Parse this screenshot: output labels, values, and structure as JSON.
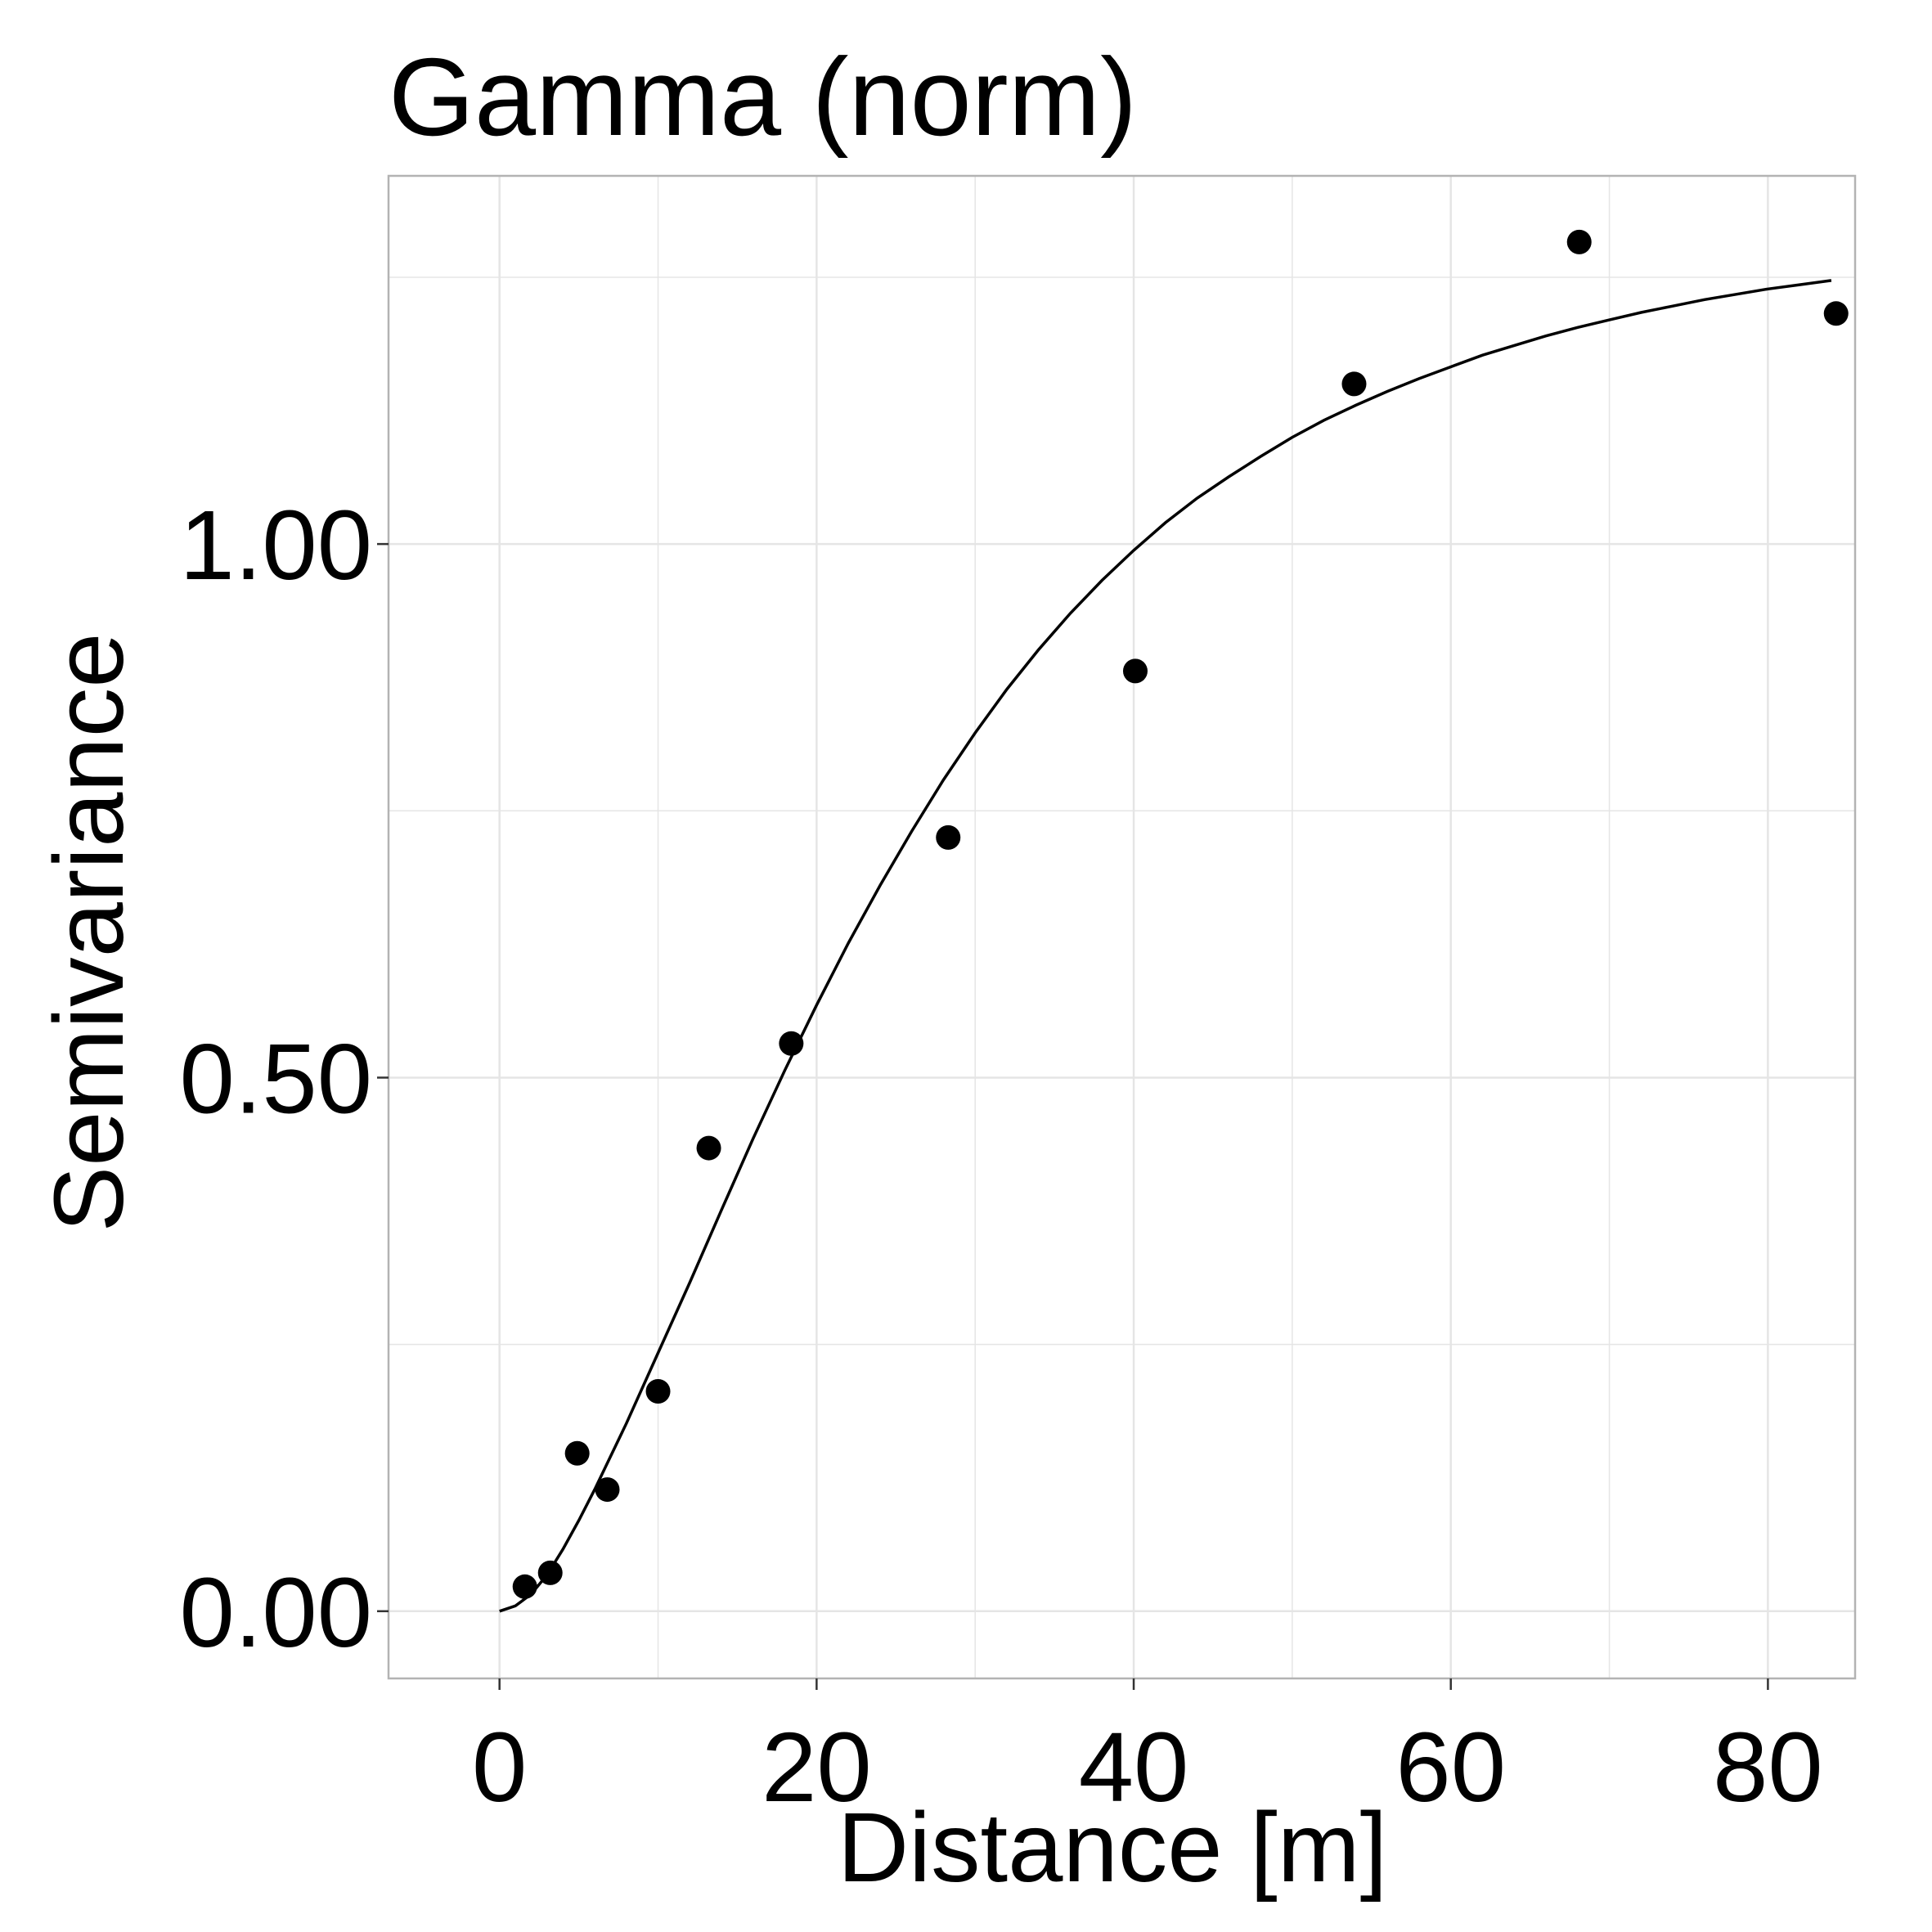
{
  "chart_data": {
    "type": "scatter",
    "title": "Gamma (norm)",
    "xlabel": "Distance [m]",
    "ylabel": "Semivariance",
    "xlim": [
      -7,
      85.5
    ],
    "ylim": [
      -0.063,
      1.345
    ],
    "x_ticks": [
      0,
      20,
      40,
      60,
      80
    ],
    "x_tick_labels": [
      "0",
      "20",
      "40",
      "60",
      "80"
    ],
    "y_ticks": [
      0.0,
      0.5,
      1.0
    ],
    "y_tick_labels": [
      "0.00",
      "0.50",
      "1.00"
    ],
    "grid": true,
    "legend": "none",
    "colors": {
      "points": "#000000",
      "line": "#000000",
      "grid": "#e5e5e5",
      "panel_border": "#b3b3b3",
      "background": "#ffffff"
    },
    "points": {
      "x": [
        1.6,
        3.2,
        4.9,
        6.8,
        10.0,
        13.2,
        18.4,
        28.3,
        40.1,
        53.9,
        68.1,
        84.3
      ],
      "y": [
        0.023,
        0.036,
        0.148,
        0.114,
        0.206,
        0.434,
        0.532,
        0.725,
        0.881,
        1.15,
        1.283,
        1.216
      ]
    },
    "series": [
      {
        "type": "line",
        "x": [
          0.0,
          1.0,
          2.0,
          3.0,
          4.0,
          5.0,
          6.0,
          8.0,
          10.0,
          12.0,
          14.0,
          16.0,
          18.0,
          20.0,
          22.0,
          24.0,
          26.0,
          28.0,
          30.0,
          32.0,
          34.0,
          36.0,
          38.0,
          40.0,
          42.0,
          44.0,
          46.0,
          48.0,
          50.0,
          52.0,
          54.0,
          56.0,
          58.0,
          60.0,
          62.0,
          64.0,
          66.0,
          68.0,
          70.0,
          72.0,
          74.0,
          76.0,
          78.0,
          80.0,
          82.0,
          84.0
        ],
        "y": [
          0.0,
          0.005,
          0.016,
          0.034,
          0.058,
          0.085,
          0.114,
          0.176,
          0.242,
          0.308,
          0.376,
          0.443,
          0.507,
          0.568,
          0.626,
          0.68,
          0.731,
          0.779,
          0.823,
          0.864,
          0.901,
          0.935,
          0.966,
          0.994,
          1.02,
          1.043,
          1.063,
          1.082,
          1.1,
          1.116,
          1.13,
          1.143,
          1.155,
          1.166,
          1.177,
          1.186,
          1.195,
          1.203,
          1.21,
          1.217,
          1.223,
          1.229,
          1.234,
          1.239,
          1.243,
          1.247
        ]
      }
    ]
  }
}
